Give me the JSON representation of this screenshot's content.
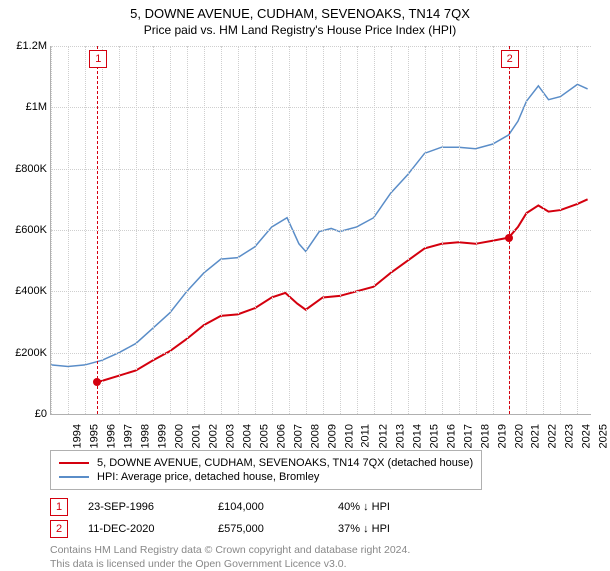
{
  "title": "5, DOWNE AVENUE, CUDHAM, SEVENOAKS, TN14 7QX",
  "subtitle": "Price paid vs. HM Land Registry's House Price Index (HPI)",
  "chart": {
    "type": "line",
    "background_color": "#ffffff",
    "grid_color": "#cfcfcf",
    "border_color": "#b0b0b0",
    "ylim": [
      0,
      1200000
    ],
    "ytick_step": 200000,
    "yticks": [
      "£0",
      "£200K",
      "£400K",
      "£600K",
      "£800K",
      "£1M",
      "£1.2M"
    ],
    "x_year_min": 1994,
    "x_year_max": 2025.8,
    "xticks": [
      "1994",
      "1995",
      "1996",
      "1997",
      "1998",
      "1999",
      "2000",
      "2001",
      "2002",
      "2003",
      "2004",
      "2005",
      "2006",
      "2007",
      "2008",
      "2009",
      "2010",
      "2011",
      "2012",
      "2013",
      "2014",
      "2015",
      "2016",
      "2017",
      "2018",
      "2019",
      "2020",
      "2021",
      "2022",
      "2023",
      "2024",
      "2025"
    ],
    "label_fontsize": 11,
    "series": [
      {
        "name": "property",
        "color": "#d4000e",
        "line_width": 2,
        "data": [
          [
            1996.73,
            104000
          ],
          [
            1997,
            108000
          ],
          [
            1998,
            125000
          ],
          [
            1999,
            142000
          ],
          [
            2000,
            175000
          ],
          [
            2001,
            205000
          ],
          [
            2002,
            245000
          ],
          [
            2003,
            290000
          ],
          [
            2004,
            320000
          ],
          [
            2005,
            325000
          ],
          [
            2006,
            345000
          ],
          [
            2007,
            380000
          ],
          [
            2007.8,
            395000
          ],
          [
            2008.5,
            360000
          ],
          [
            2009,
            340000
          ],
          [
            2010,
            380000
          ],
          [
            2011,
            385000
          ],
          [
            2012,
            400000
          ],
          [
            2013,
            415000
          ],
          [
            2014,
            460000
          ],
          [
            2015,
            500000
          ],
          [
            2016,
            540000
          ],
          [
            2017,
            555000
          ],
          [
            2018,
            560000
          ],
          [
            2019,
            555000
          ],
          [
            2020,
            565000
          ],
          [
            2020.95,
            575000
          ],
          [
            2021.5,
            610000
          ],
          [
            2022,
            655000
          ],
          [
            2022.7,
            680000
          ],
          [
            2023.3,
            660000
          ],
          [
            2024,
            665000
          ],
          [
            2025,
            685000
          ],
          [
            2025.6,
            700000
          ]
        ]
      },
      {
        "name": "hpi",
        "color": "#5a8dc8",
        "line_width": 1.5,
        "data": [
          [
            1994,
            160000
          ],
          [
            1995,
            155000
          ],
          [
            1996,
            160000
          ],
          [
            1997,
            175000
          ],
          [
            1998,
            200000
          ],
          [
            1999,
            230000
          ],
          [
            2000,
            280000
          ],
          [
            2001,
            330000
          ],
          [
            2002,
            400000
          ],
          [
            2003,
            460000
          ],
          [
            2004,
            505000
          ],
          [
            2005,
            510000
          ],
          [
            2006,
            545000
          ],
          [
            2007,
            610000
          ],
          [
            2007.9,
            640000
          ],
          [
            2008.6,
            555000
          ],
          [
            2009,
            530000
          ],
          [
            2009.8,
            595000
          ],
          [
            2010.5,
            605000
          ],
          [
            2011,
            595000
          ],
          [
            2012,
            610000
          ],
          [
            2013,
            640000
          ],
          [
            2014,
            720000
          ],
          [
            2015,
            780000
          ],
          [
            2016,
            850000
          ],
          [
            2017,
            870000
          ],
          [
            2018,
            870000
          ],
          [
            2019,
            865000
          ],
          [
            2020,
            880000
          ],
          [
            2020.95,
            910000
          ],
          [
            2021.5,
            955000
          ],
          [
            2022,
            1020000
          ],
          [
            2022.7,
            1070000
          ],
          [
            2023.3,
            1025000
          ],
          [
            2024,
            1035000
          ],
          [
            2025,
            1075000
          ],
          [
            2025.6,
            1060000
          ]
        ]
      }
    ],
    "markers": [
      {
        "n": "1",
        "year": 1996.73,
        "value": 104000,
        "color": "#d4000e"
      },
      {
        "n": "2",
        "year": 2020.95,
        "value": 575000,
        "color": "#d4000e"
      }
    ]
  },
  "legend": {
    "items": [
      {
        "color": "#d4000e",
        "label": "5, DOWNE AVENUE, CUDHAM, SEVENOAKS, TN14 7QX (detached house)"
      },
      {
        "color": "#5a8dc8",
        "label": "HPI: Average price, detached house, Bromley"
      }
    ]
  },
  "transactions": [
    {
      "n": "1",
      "color": "#d4000e",
      "date": "23-SEP-1996",
      "price": "£104,000",
      "hpi": "40% ↓ HPI"
    },
    {
      "n": "2",
      "color": "#d4000e",
      "date": "11-DEC-2020",
      "price": "£575,000",
      "hpi": "37% ↓ HPI"
    }
  ],
  "footer": {
    "line1": "Contains HM Land Registry data © Crown copyright and database right 2024.",
    "line2": "This data is licensed under the Open Government Licence v3.0."
  }
}
